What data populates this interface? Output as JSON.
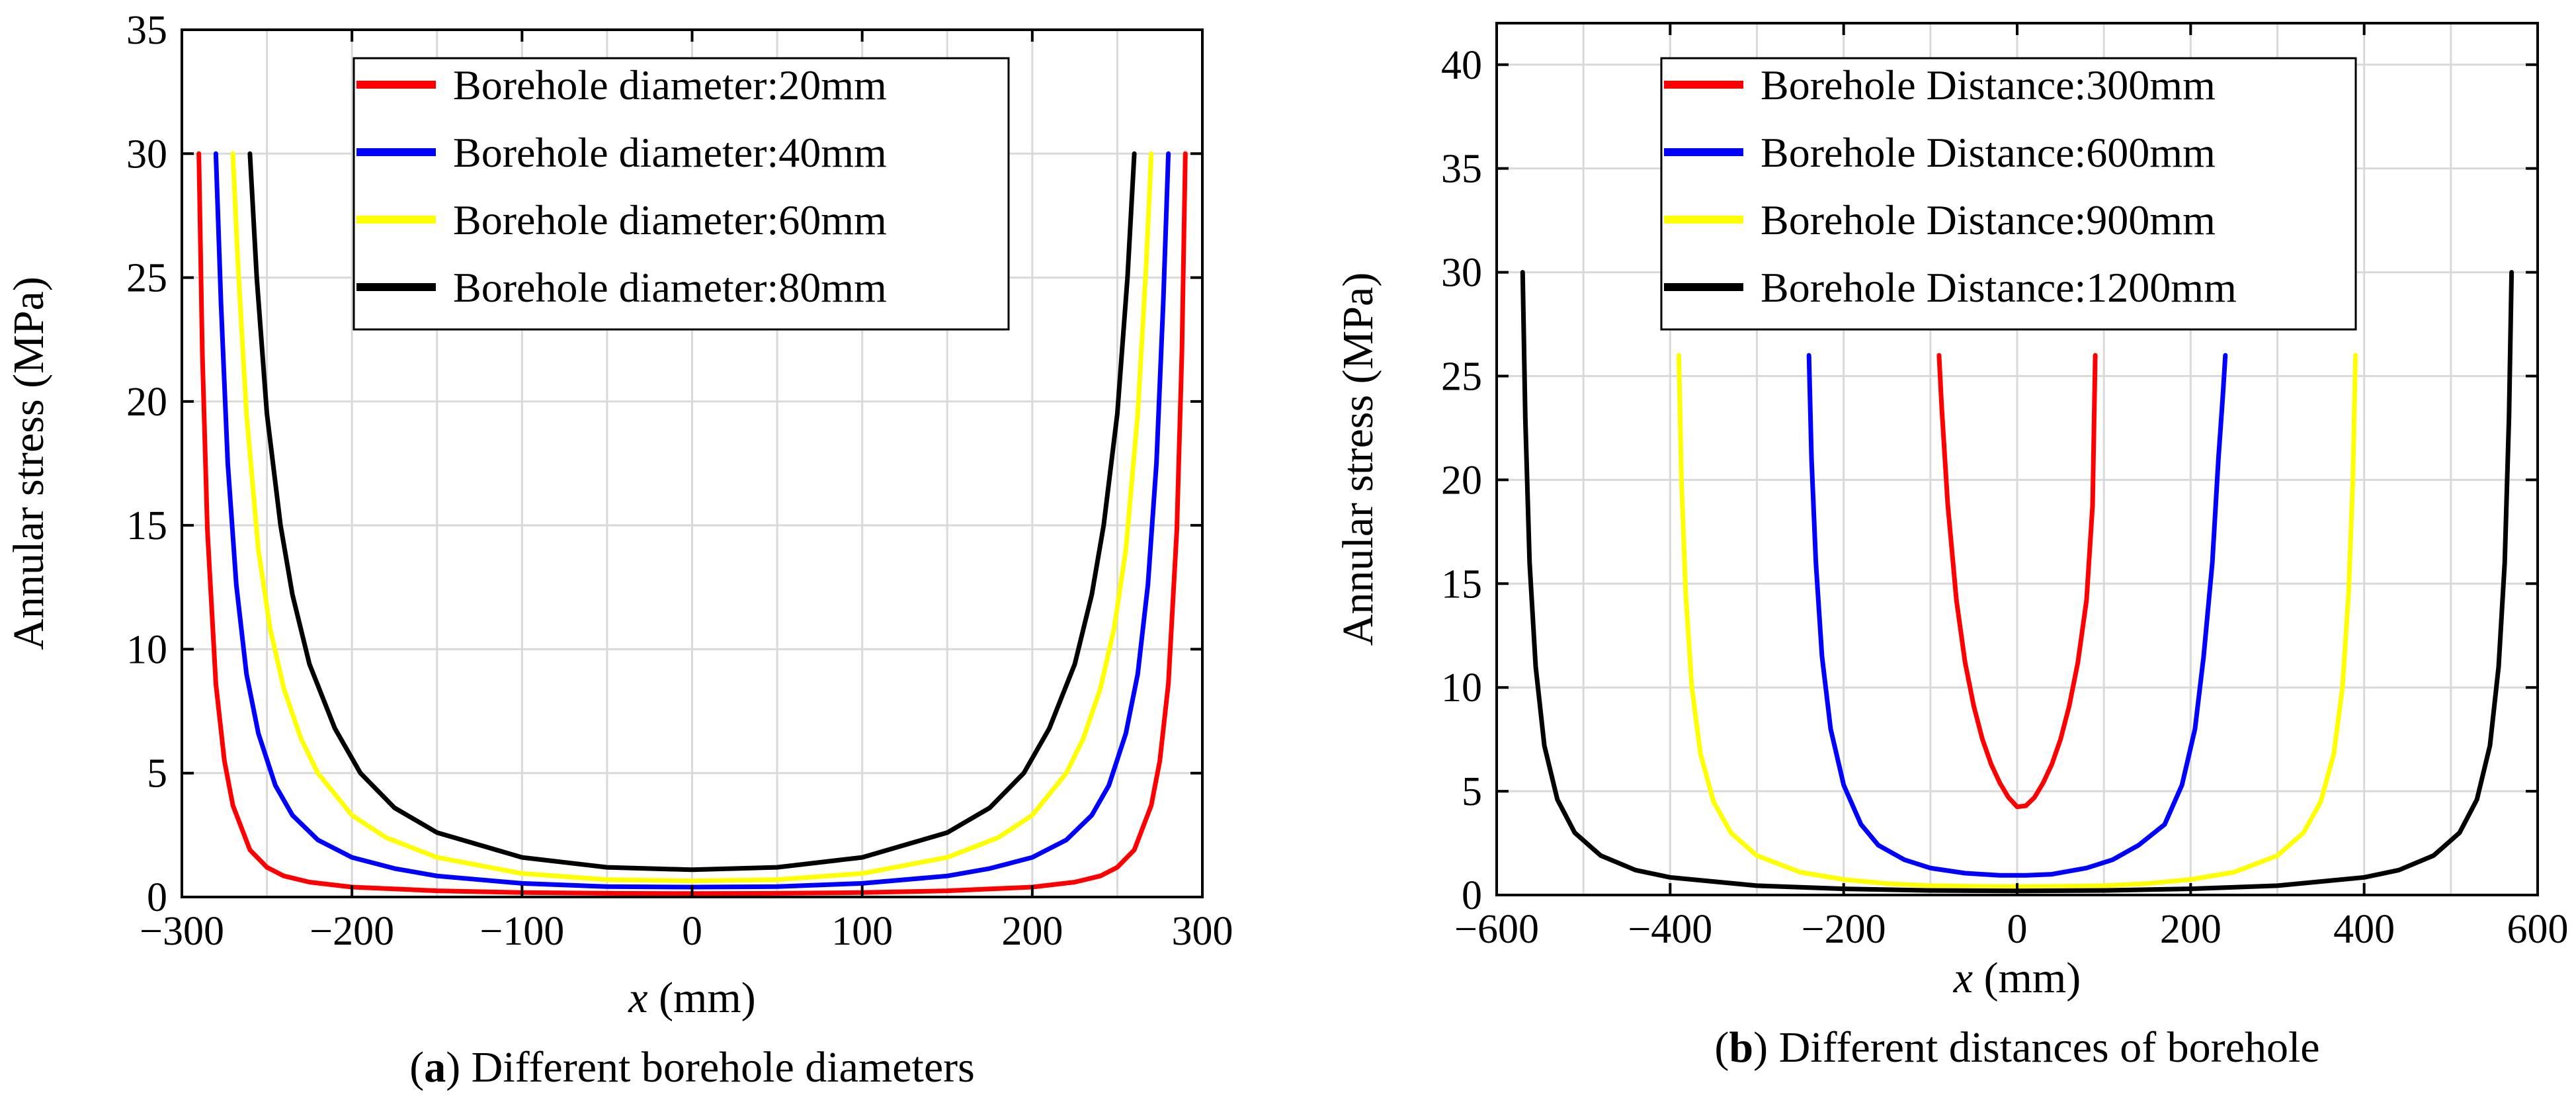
{
  "chart_data": [
    {
      "type": "line",
      "caption_letter": "a",
      "caption_text": ") Different borehole diameters",
      "caption_open": "(",
      "xlabel_var": "x",
      "xlabel_unit": " (mm)",
      "ylabel": "Annular stress (MPa)",
      "xlim": [
        -300,
        300
      ],
      "ylim": [
        0,
        35
      ],
      "xticks": [
        -300,
        -200,
        -100,
        0,
        100,
        200,
        300
      ],
      "xtick_labels": [
        "−300",
        "−200",
        "−100",
        "0",
        "100",
        "200",
        "300"
      ],
      "yticks": [
        0,
        5,
        10,
        15,
        20,
        25,
        30,
        35
      ],
      "ytick_labels": [
        "0",
        "5",
        "10",
        "15",
        "20",
        "25",
        "30",
        "35"
      ],
      "grid": true,
      "legend_position": "top",
      "series": [
        {
          "name": "Borehole diameter:20mm",
          "color": "#ff0000",
          "x": [
            -290,
            -288,
            -285,
            -280,
            -275,
            -270,
            -260,
            -250,
            -240,
            -225,
            -200,
            -150,
            -100,
            -50,
            0,
            50,
            100,
            150,
            200,
            225,
            240,
            250,
            260,
            270,
            275,
            280,
            285,
            288,
            290
          ],
          "y": [
            30,
            22,
            14.8,
            8.6,
            5.5,
            3.7,
            1.9,
            1.2,
            0.85,
            0.6,
            0.4,
            0.25,
            0.18,
            0.15,
            0.14,
            0.15,
            0.18,
            0.25,
            0.4,
            0.6,
            0.85,
            1.2,
            1.9,
            3.7,
            5.5,
            8.6,
            14.8,
            22,
            30
          ]
        },
        {
          "name": "Borehole diameter:40mm",
          "color": "#0000ff",
          "x": [
            -280,
            -277,
            -273,
            -268,
            -262,
            -255,
            -245,
            -235,
            -220,
            -200,
            -175,
            -150,
            -100,
            -50,
            0,
            50,
            100,
            150,
            175,
            200,
            220,
            235,
            245,
            255,
            262,
            268,
            273,
            277,
            280
          ],
          "y": [
            30,
            24,
            17.5,
            12.6,
            9,
            6.6,
            4.5,
            3.3,
            2.3,
            1.6,
            1.15,
            0.85,
            0.55,
            0.42,
            0.4,
            0.42,
            0.55,
            0.85,
            1.15,
            1.6,
            2.3,
            3.3,
            4.5,
            6.6,
            9,
            12.6,
            17.5,
            24,
            30
          ]
        },
        {
          "name": "Borehole diameter:60mm",
          "color": "#ffff00",
          "x": [
            -270,
            -267,
            -262,
            -255,
            -248,
            -240,
            -230,
            -220,
            -200,
            -180,
            -150,
            -100,
            -50,
            0,
            50,
            100,
            150,
            180,
            200,
            220,
            230,
            240,
            248,
            255,
            262,
            267,
            270
          ],
          "y": [
            30,
            25.5,
            19.5,
            14,
            10.8,
            8.4,
            6.4,
            5,
            3.3,
            2.4,
            1.6,
            0.95,
            0.7,
            0.65,
            0.7,
            0.95,
            1.6,
            2.4,
            3.3,
            5,
            6.4,
            8.4,
            10.8,
            14,
            19.5,
            25.5,
            30
          ]
        },
        {
          "name": "Borehole diameter:80mm",
          "color": "#000000",
          "x": [
            -260,
            -256,
            -250,
            -242,
            -235,
            -225,
            -210,
            -195,
            -175,
            -150,
            -100,
            -50,
            0,
            50,
            100,
            150,
            175,
            195,
            210,
            225,
            235,
            242,
            250,
            256,
            260
          ],
          "y": [
            30,
            25,
            19.5,
            15,
            12.2,
            9.4,
            6.8,
            5,
            3.6,
            2.6,
            1.6,
            1.2,
            1.1,
            1.2,
            1.6,
            2.6,
            3.6,
            5,
            6.8,
            9.4,
            12.2,
            15,
            19.5,
            25,
            30
          ]
        }
      ]
    },
    {
      "type": "line",
      "caption_letter": "b",
      "caption_text": ") Different distances of borehole",
      "caption_open": "(",
      "xlabel_var": "x",
      "xlabel_unit": " (mm)",
      "ylabel": "Annular stress (MPa)",
      "xlim": [
        -600,
        600
      ],
      "ylim": [
        0,
        42
      ],
      "xticks": [
        -600,
        -400,
        -200,
        0,
        200,
        400,
        600
      ],
      "xtick_labels": [
        "−600",
        "−400",
        "−200",
        "0",
        "200",
        "400",
        "600"
      ],
      "yticks": [
        0,
        5,
        10,
        15,
        20,
        25,
        30,
        35,
        40
      ],
      "ytick_labels": [
        "0",
        "5",
        "10",
        "15",
        "20",
        "25",
        "30",
        "35",
        "40"
      ],
      "grid": true,
      "legend_position": "top",
      "series": [
        {
          "name": "Borehole Distance:300mm",
          "color": "#ff0000",
          "x": [
            -90,
            -87,
            -80,
            -70,
            -60,
            -50,
            -40,
            -30,
            -20,
            -10,
            0,
            10,
            20,
            30,
            40,
            50,
            60,
            70,
            80,
            87,
            90
          ],
          "y": [
            26,
            23.5,
            18.8,
            14.2,
            11.2,
            9.1,
            7.5,
            6.3,
            5.4,
            4.7,
            4.25,
            4.3,
            4.7,
            5.4,
            6.3,
            7.5,
            9.1,
            11.2,
            14.2,
            18.8,
            26
          ]
        },
        {
          "name": "Borehole Distance:600mm",
          "color": "#0000ff",
          "x": [
            -240,
            -237,
            -232,
            -225,
            -215,
            -200,
            -180,
            -160,
            -130,
            -100,
            -60,
            -20,
            10,
            40,
            80,
            110,
            140,
            170,
            190,
            205,
            215,
            225,
            232,
            237,
            240
          ],
          "y": [
            26,
            21,
            16,
            11.5,
            8,
            5.3,
            3.4,
            2.4,
            1.7,
            1.3,
            1.05,
            0.95,
            0.95,
            1.0,
            1.3,
            1.7,
            2.4,
            3.4,
            5.3,
            8,
            11.5,
            16,
            21,
            24,
            26
          ]
        },
        {
          "name": "Borehole Distance:900mm",
          "color": "#ffff00",
          "x": [
            -390,
            -387,
            -382,
            -375,
            -365,
            -350,
            -330,
            -300,
            -250,
            -200,
            -150,
            -100,
            -50,
            0,
            50,
            100,
            150,
            200,
            250,
            300,
            330,
            350,
            365,
            375,
            382,
            387,
            390
          ],
          "y": [
            26,
            20,
            14.5,
            10,
            6.8,
            4.5,
            3,
            1.9,
            1.1,
            0.75,
            0.55,
            0.45,
            0.42,
            0.4,
            0.42,
            0.45,
            0.55,
            0.75,
            1.1,
            1.9,
            3,
            4.5,
            6.8,
            10,
            14.5,
            20,
            26
          ]
        },
        {
          "name": "Borehole Distance:1200mm",
          "color": "#000000",
          "x": [
            -570,
            -567,
            -562,
            -555,
            -545,
            -530,
            -510,
            -480,
            -440,
            -400,
            -300,
            -200,
            -100,
            0,
            100,
            200,
            300,
            400,
            440,
            480,
            510,
            530,
            545,
            555,
            562,
            567,
            570
          ],
          "y": [
            30,
            23,
            16,
            11,
            7.2,
            4.6,
            3,
            1.9,
            1.2,
            0.85,
            0.45,
            0.3,
            0.22,
            0.2,
            0.22,
            0.3,
            0.45,
            0.85,
            1.2,
            1.9,
            3,
            4.6,
            7.2,
            11,
            16,
            23,
            30
          ]
        }
      ]
    }
  ]
}
